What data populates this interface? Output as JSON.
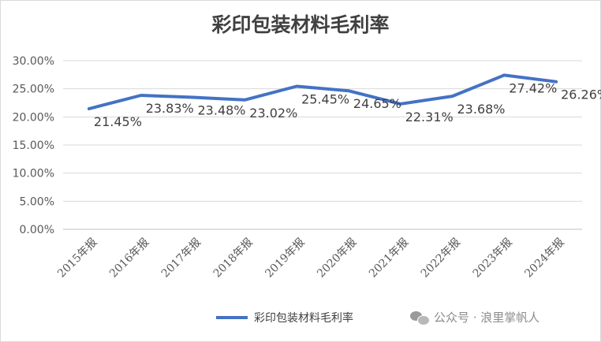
{
  "chart_data": {
    "type": "line",
    "title": "彩印包装材料毛利率",
    "categories": [
      "2015年报",
      "2016年报",
      "2017年报",
      "2018年报",
      "2019年报",
      "2020年报",
      "2021年报",
      "2022年报",
      "2023年报",
      "2024年报"
    ],
    "series": [
      {
        "name": "彩印包装材料毛利率",
        "values": [
          21.45,
          23.83,
          23.48,
          23.02,
          25.45,
          24.65,
          22.31,
          23.68,
          27.42,
          26.26
        ],
        "labels": [
          "21.45%",
          "23.83%",
          "23.48%",
          "23.02%",
          "25.45%",
          "24.65%",
          "22.31%",
          "23.68%",
          "27.42%",
          "26.26%"
        ],
        "color": "#4472c4"
      }
    ],
    "ylim": [
      0,
      30
    ],
    "yticks": [
      "0.00%",
      "5.00%",
      "10.00%",
      "15.00%",
      "20.00%",
      "25.00%",
      "30.00%"
    ],
    "ytick_values": [
      0,
      5,
      10,
      15,
      20,
      25,
      30
    ],
    "xlabel": "",
    "ylabel": "",
    "grid": true,
    "legend_position": "bottom"
  },
  "legend_label": "彩印包装材料毛利率",
  "watermark": "公众号 · 浪里掌帆人"
}
